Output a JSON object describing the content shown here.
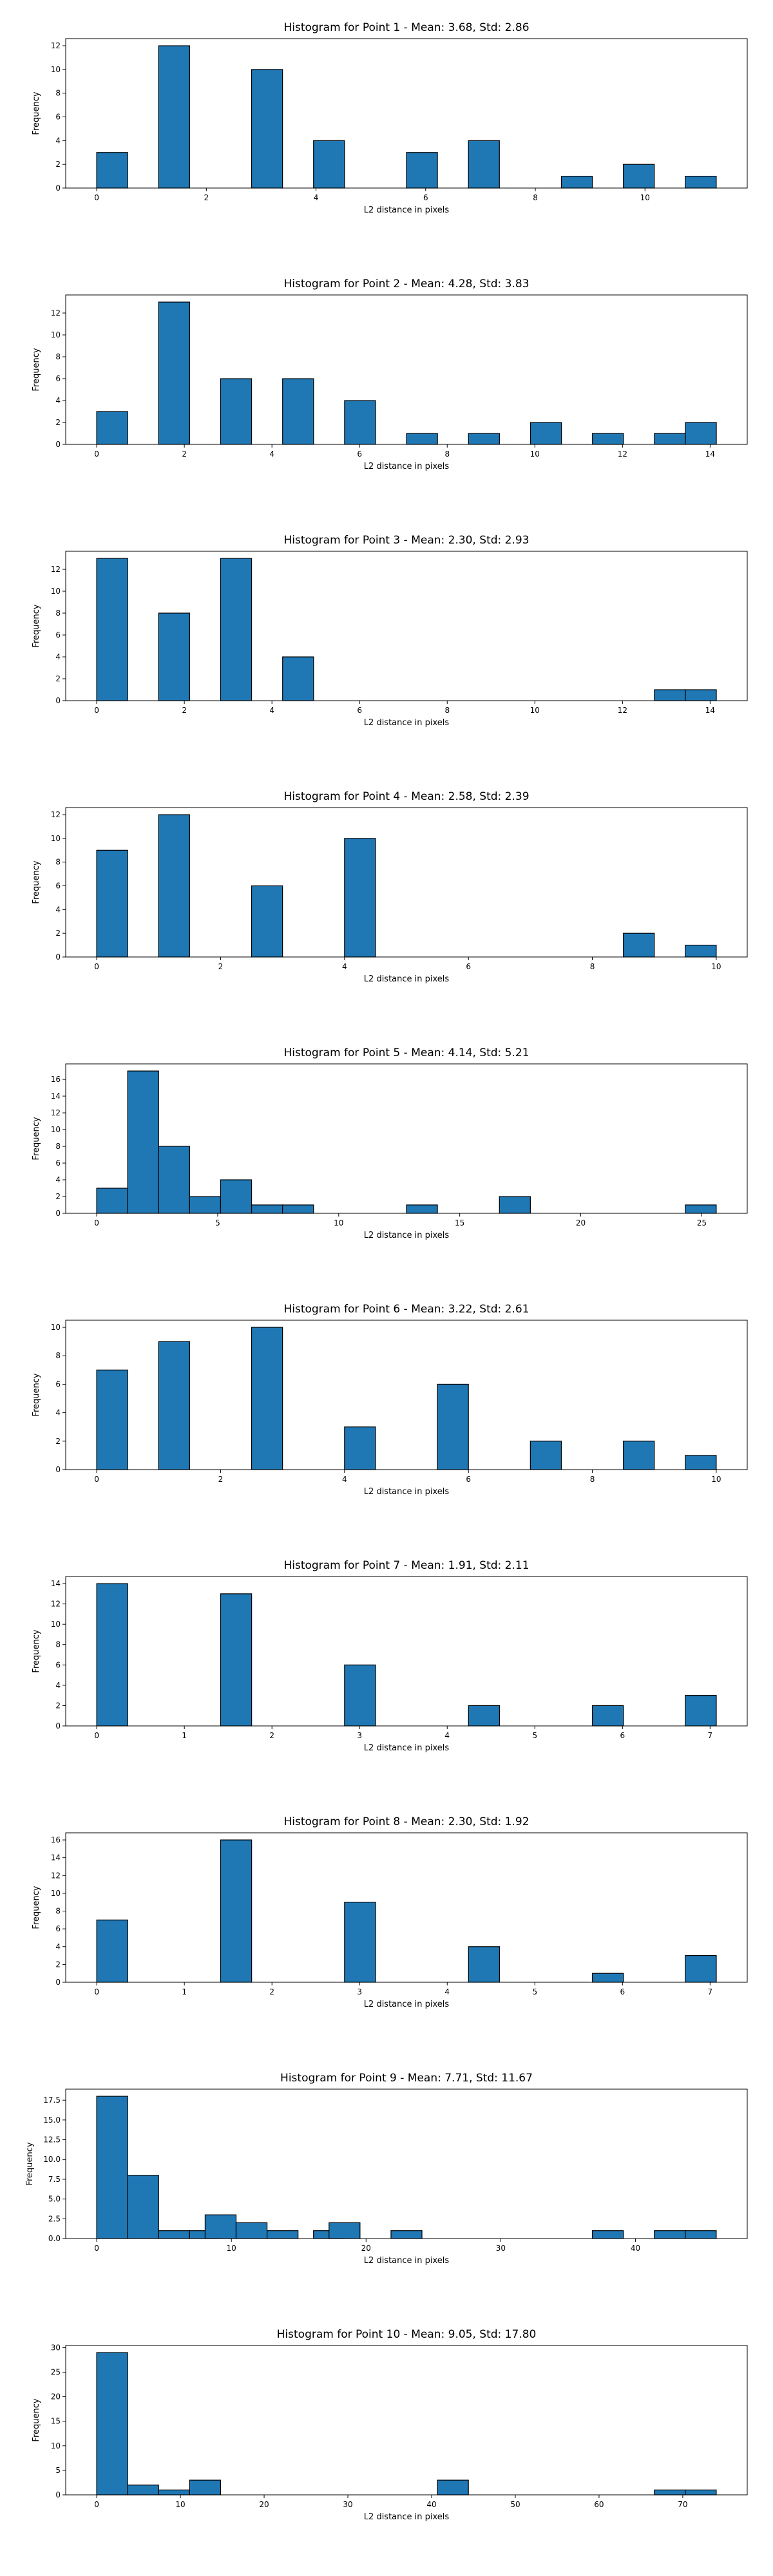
{
  "chart_data": [
    {
      "type": "bar",
      "title": "Histogram for Point 1 - Mean: 3.68, Std: 2.86",
      "xlabel": "L2 distance in pixels",
      "ylabel": "Frequency",
      "xlim": [
        -0.565,
        11.865
      ],
      "ylim": [
        0,
        12.6
      ],
      "xticks": [
        0,
        2,
        4,
        6,
        8,
        10
      ],
      "yticks": [
        0,
        2,
        4,
        6,
        8,
        10,
        12
      ],
      "bin_width": 0.565,
      "bins": [
        [
          0,
          3
        ],
        [
          1.13,
          12
        ],
        [
          2.825,
          10
        ],
        [
          3.955,
          4
        ],
        [
          5.65,
          3
        ],
        [
          6.78,
          4
        ],
        [
          8.475,
          1
        ],
        [
          9.605,
          2
        ],
        [
          10.735,
          1
        ]
      ]
    },
    {
      "type": "bar",
      "title": "Histogram for Point 2 - Mean: 4.28, Std: 3.83",
      "xlabel": "L2 distance in pixels",
      "ylabel": "Frequency",
      "xlim": [
        -0.707,
        14.847
      ],
      "ylim": [
        0,
        13.65
      ],
      "xticks": [
        0,
        2,
        4,
        6,
        8,
        10,
        12,
        14
      ],
      "yticks": [
        0,
        2,
        4,
        6,
        8,
        10,
        12
      ],
      "bin_width": 0.707,
      "bins": [
        [
          0,
          3
        ],
        [
          1.414,
          13
        ],
        [
          2.828,
          6
        ],
        [
          4.243,
          6
        ],
        [
          5.657,
          4
        ],
        [
          7.071,
          1
        ],
        [
          8.485,
          1
        ],
        [
          9.9,
          2
        ],
        [
          11.314,
          1
        ],
        [
          12.728,
          1
        ],
        [
          13.435,
          2
        ]
      ]
    },
    {
      "type": "bar",
      "title": "Histogram for Point 3 - Mean: 2.30, Std: 2.93",
      "xlabel": "L2 distance in pixels",
      "ylabel": "Frequency",
      "xlim": [
        -0.707,
        14.847
      ],
      "ylim": [
        0,
        13.65
      ],
      "xticks": [
        0,
        2,
        4,
        6,
        8,
        10,
        12,
        14
      ],
      "yticks": [
        0,
        2,
        4,
        6,
        8,
        10,
        12
      ],
      "bin_width": 0.707,
      "bins": [
        [
          0,
          13
        ],
        [
          1.414,
          8
        ],
        [
          2.828,
          13
        ],
        [
          4.243,
          4
        ],
        [
          12.728,
          1
        ],
        [
          13.435,
          1
        ]
      ]
    },
    {
      "type": "bar",
      "title": "Histogram for Point 4 - Mean: 2.58, Std: 2.39",
      "xlabel": "L2 distance in pixels",
      "ylabel": "Frequency",
      "xlim": [
        -0.5,
        10.5
      ],
      "ylim": [
        0,
        12.6
      ],
      "xticks": [
        0,
        2,
        4,
        6,
        8,
        10
      ],
      "yticks": [
        0,
        2,
        4,
        6,
        8,
        10,
        12
      ],
      "bin_width": 0.5,
      "bins": [
        [
          0,
          9
        ],
        [
          1,
          12
        ],
        [
          2.5,
          6
        ],
        [
          4,
          10
        ],
        [
          8.5,
          2
        ],
        [
          9.5,
          1
        ]
      ]
    },
    {
      "type": "bar",
      "title": "Histogram for Point 5 - Mean: 4.14, Std: 5.21",
      "xlabel": "L2 distance in pixels",
      "ylabel": "Frequency",
      "xlim": [
        -1.28,
        26.88
      ],
      "ylim": [
        0,
        17.85
      ],
      "xticks": [
        0,
        5,
        10,
        15,
        20,
        25
      ],
      "yticks": [
        0,
        2,
        4,
        6,
        8,
        10,
        12,
        14,
        16
      ],
      "bin_width": 1.28,
      "bins": [
        [
          0,
          3
        ],
        [
          1.28,
          17
        ],
        [
          2.56,
          8
        ],
        [
          3.84,
          2
        ],
        [
          5.12,
          4
        ],
        [
          6.4,
          1
        ],
        [
          7.68,
          1
        ],
        [
          12.8,
          1
        ],
        [
          16.64,
          2
        ],
        [
          24.32,
          1
        ]
      ]
    },
    {
      "type": "bar",
      "title": "Histogram for Point 6 - Mean: 3.22, Std: 2.61",
      "xlabel": "L2 distance in pixels",
      "ylabel": "Frequency",
      "xlim": [
        -0.5,
        10.5
      ],
      "ylim": [
        0,
        10.5
      ],
      "xticks": [
        0,
        2,
        4,
        6,
        8,
        10
      ],
      "yticks": [
        0,
        2,
        4,
        6,
        8,
        10
      ],
      "bin_width": 0.5,
      "bins": [
        [
          0,
          7
        ],
        [
          1,
          9
        ],
        [
          2.5,
          10
        ],
        [
          4,
          3
        ],
        [
          5.5,
          6
        ],
        [
          7,
          2
        ],
        [
          8.5,
          2
        ],
        [
          9.5,
          1
        ]
      ]
    },
    {
      "type": "bar",
      "title": "Histogram for Point 7 - Mean: 1.91, Std: 2.11",
      "xlabel": "L2 distance in pixels",
      "ylabel": "Frequency",
      "xlim": [
        -0.354,
        7.424
      ],
      "ylim": [
        0,
        14.7
      ],
      "xticks": [
        0,
        1,
        2,
        3,
        4,
        5,
        6,
        7
      ],
      "yticks": [
        0,
        2,
        4,
        6,
        8,
        10,
        12,
        14
      ],
      "bin_width": 0.354,
      "bins": [
        [
          0,
          14
        ],
        [
          1.414,
          13
        ],
        [
          2.828,
          6
        ],
        [
          4.243,
          2
        ],
        [
          5.657,
          2
        ],
        [
          6.717,
          3
        ]
      ]
    },
    {
      "type": "bar",
      "title": "Histogram for Point 8 - Mean: 2.30, Std: 1.92",
      "xlabel": "L2 distance in pixels",
      "ylabel": "Frequency",
      "xlim": [
        -0.354,
        7.424
      ],
      "ylim": [
        0,
        16.8
      ],
      "xticks": [
        0,
        1,
        2,
        3,
        4,
        5,
        6,
        7
      ],
      "yticks": [
        0,
        2,
        4,
        6,
        8,
        10,
        12,
        14,
        16
      ],
      "bin_width": 0.354,
      "bins": [
        [
          0,
          7
        ],
        [
          1.414,
          16
        ],
        [
          2.828,
          9
        ],
        [
          4.243,
          4
        ],
        [
          5.657,
          1
        ],
        [
          6.717,
          3
        ]
      ]
    },
    {
      "type": "bar",
      "title": "Histogram for Point 9 - Mean: 7.71, Std: 11.67",
      "xlabel": "L2 distance in pixels",
      "ylabel": "Frequency",
      "xlim": [
        -2.3,
        48.3
      ],
      "ylim": [
        0,
        18.9
      ],
      "xticks": [
        0,
        10,
        20,
        30,
        40
      ],
      "yticks": [
        0,
        2.5,
        5.0,
        7.5,
        10.0,
        12.5,
        15.0,
        17.5
      ],
      "ytick_decimals": 1,
      "bin_width": 2.3,
      "bins": [
        [
          0,
          18
        ],
        [
          2.3,
          8
        ],
        [
          4.6,
          1
        ],
        [
          6.9,
          1
        ],
        [
          8.05,
          3
        ],
        [
          10.35,
          2
        ],
        [
          12.65,
          1
        ],
        [
          16.1,
          1
        ],
        [
          17.25,
          2
        ],
        [
          21.85,
          1
        ],
        [
          36.8,
          1
        ],
        [
          41.4,
          1
        ],
        [
          43.7,
          1
        ]
      ]
    },
    {
      "type": "bar",
      "title": "Histogram for Point 10 - Mean: 9.05, Std: 17.80",
      "xlabel": "L2 distance in pixels",
      "ylabel": "Frequency",
      "xlim": [
        -3.7,
        77.7
      ],
      "ylim": [
        0,
        30.45
      ],
      "xticks": [
        0,
        10,
        20,
        30,
        40,
        50,
        60,
        70
      ],
      "yticks": [
        0,
        5,
        10,
        15,
        20,
        25,
        30
      ],
      "bin_width": 3.7,
      "bins": [
        [
          0,
          29
        ],
        [
          3.7,
          2
        ],
        [
          7.4,
          1
        ],
        [
          11.1,
          3
        ],
        [
          40.7,
          3
        ],
        [
          66.6,
          1
        ],
        [
          70.3,
          1
        ]
      ]
    }
  ]
}
